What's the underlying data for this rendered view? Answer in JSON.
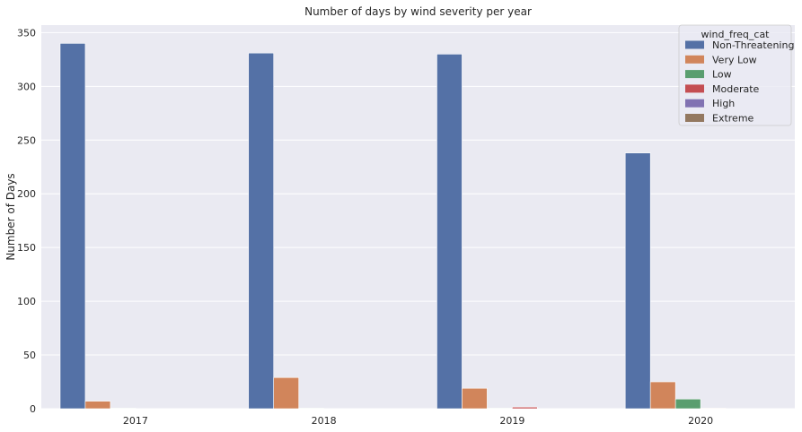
{
  "chart_data": {
    "type": "bar",
    "title": "Number of days by wind severity per year",
    "xlabel": "",
    "ylabel": "Number of Days",
    "categories": [
      "2017",
      "2018",
      "2019",
      "2020"
    ],
    "ylim": [
      0,
      357
    ],
    "yticks": [
      0,
      50,
      100,
      150,
      200,
      250,
      300,
      350
    ],
    "grid": true,
    "legend_title": "wind_freq_cat",
    "legend_position": "top-right",
    "series": [
      {
        "name": "Non-Threatening",
        "color": "#5471a6",
        "values": [
          340,
          331,
          330,
          238
        ]
      },
      {
        "name": "Very Low",
        "color": "#d1855b",
        "values": [
          7,
          29,
          19,
          25
        ]
      },
      {
        "name": "Low",
        "color": "#5a9e6f",
        "values": [
          0.5,
          0.5,
          0.5,
          9
        ]
      },
      {
        "name": "Moderate",
        "color": "#c44e52",
        "values": [
          0,
          0,
          1.5,
          0.5
        ]
      },
      {
        "name": "High",
        "color": "#8172b2",
        "values": [
          0,
          0,
          0,
          0
        ]
      },
      {
        "name": "Extreme",
        "color": "#937860",
        "values": [
          0,
          0,
          0,
          0
        ]
      }
    ]
  }
}
